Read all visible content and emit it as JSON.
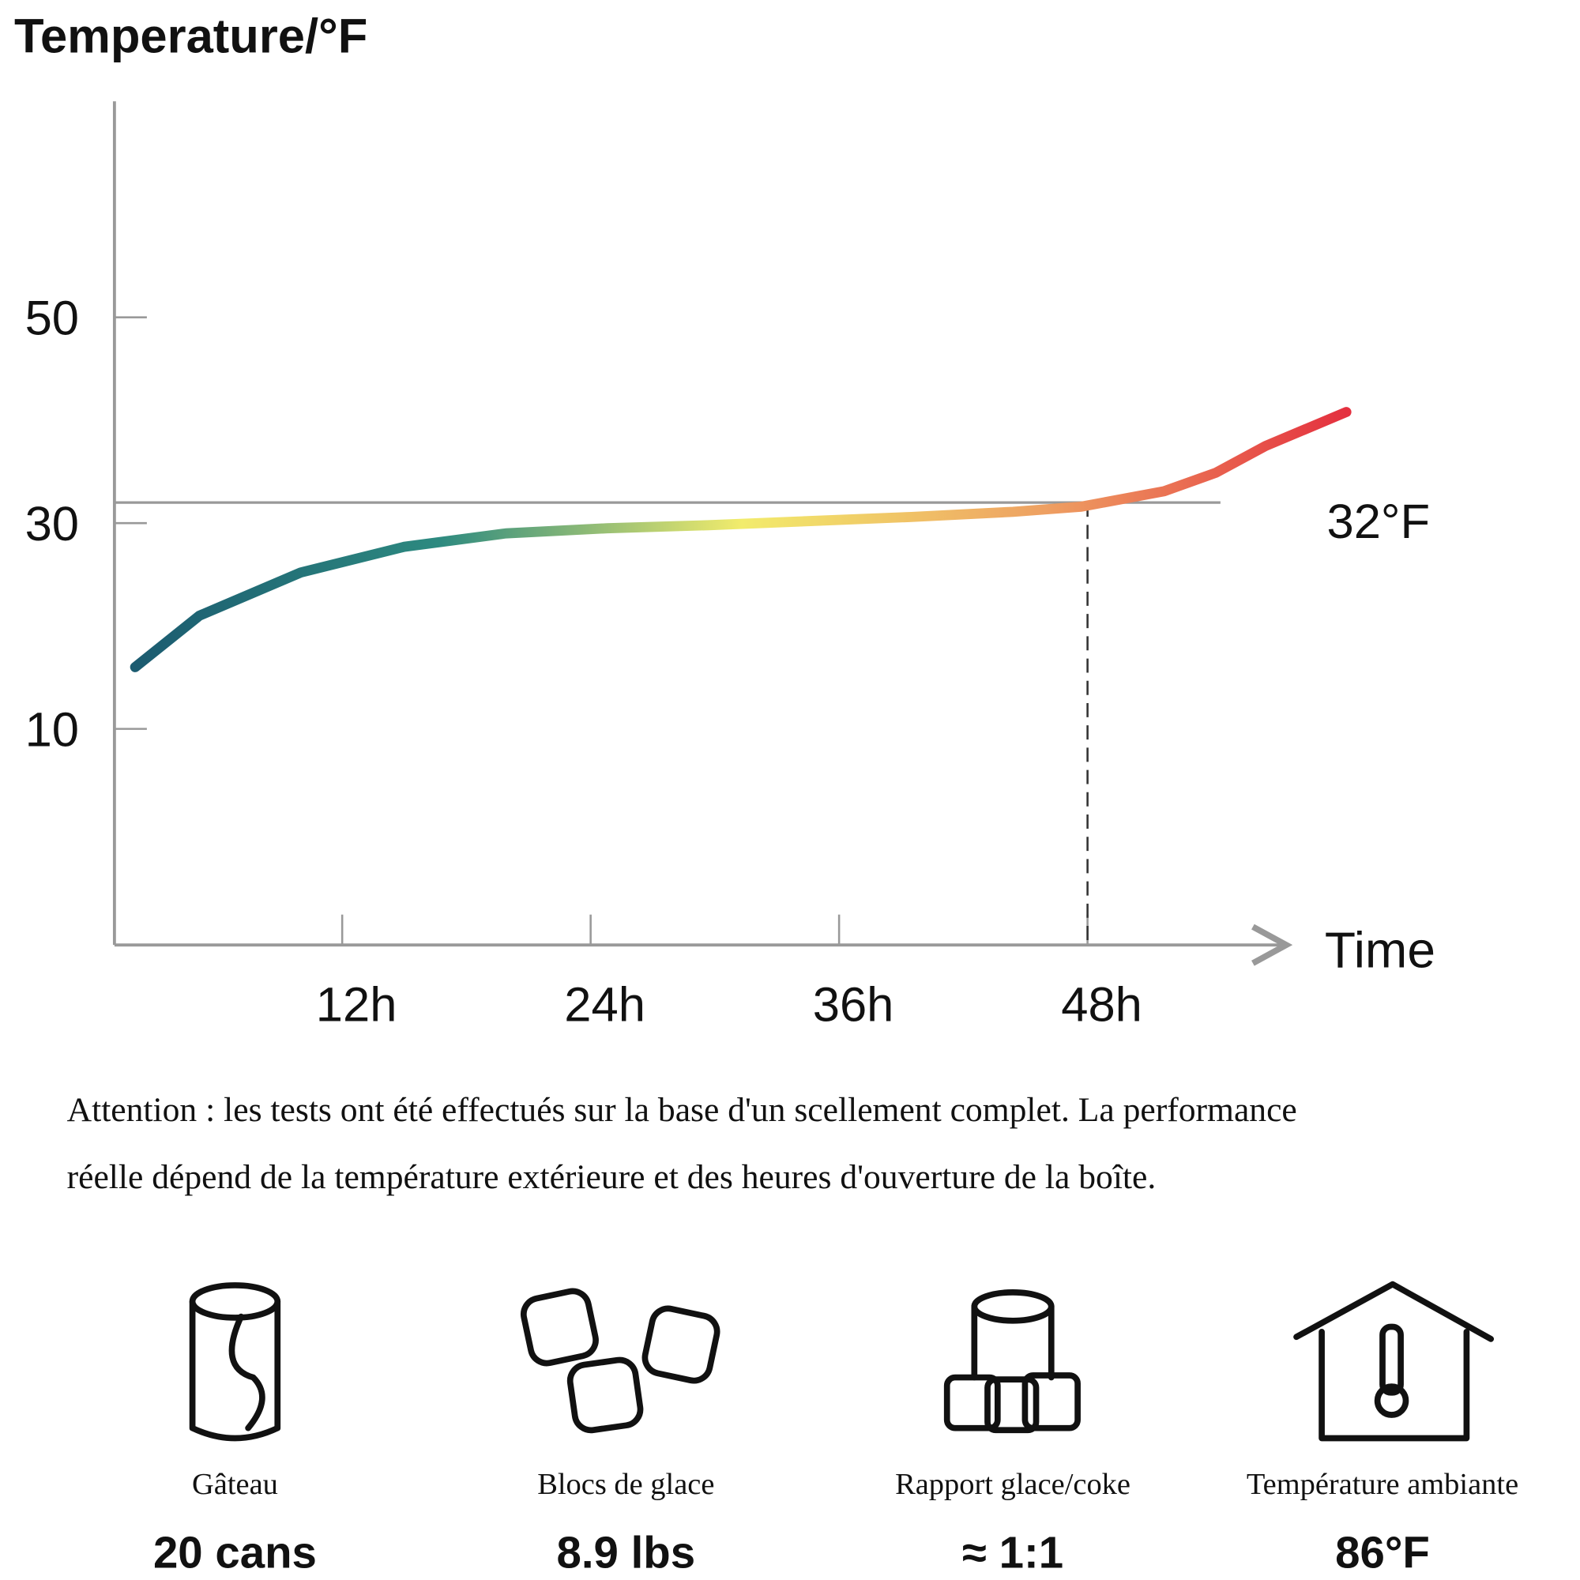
{
  "chart_data": {
    "type": "line",
    "title": "Temperature/°F",
    "x_label": "Time",
    "x": [
      2,
      5.1,
      10,
      15,
      19.9,
      24.8,
      29.7,
      34.6,
      39.5,
      44.4,
      47.7,
      51.7,
      54.2,
      56.6,
      60.5
    ],
    "values": [
      16,
      21,
      25.2,
      27.7,
      29,
      29.5,
      29.8,
      30.2,
      30.6,
      31.1,
      31.6,
      33.1,
      34.9,
      37.5,
      40.8
    ],
    "colors": [
      "#1b5b70",
      "#2d8a80",
      "#f2ec6c",
      "#eea062",
      "#e4303f"
    ],
    "xlim": [
      1,
      57.6
    ],
    "ylim": [
      -11,
      71
    ],
    "xticks": [
      {
        "value": 12,
        "label": "12h"
      },
      {
        "value": 24,
        "label": "24h"
      },
      {
        "value": 36,
        "label": "36h"
      },
      {
        "value": 48,
        "label": "48h"
      }
    ],
    "yticks": [
      10,
      30,
      50
    ],
    "reference_line": {
      "value": 32,
      "label": "32°F"
    }
  },
  "note": [
    "Attention : les tests ont été effectués sur la base d'un scellement complet. La performance",
    "réelle dépend de la température extérieure et des heures d'ouverture de la boîte."
  ],
  "features": [
    {
      "label": "Gâteau",
      "value": "20 cans"
    },
    {
      "label": "Blocs de glace",
      "value": "8.9 lbs"
    },
    {
      "label": "Rapport glace/coke",
      "value": "≈ 1:1"
    },
    {
      "label": "Température ambiante",
      "value": "86°F"
    }
  ]
}
